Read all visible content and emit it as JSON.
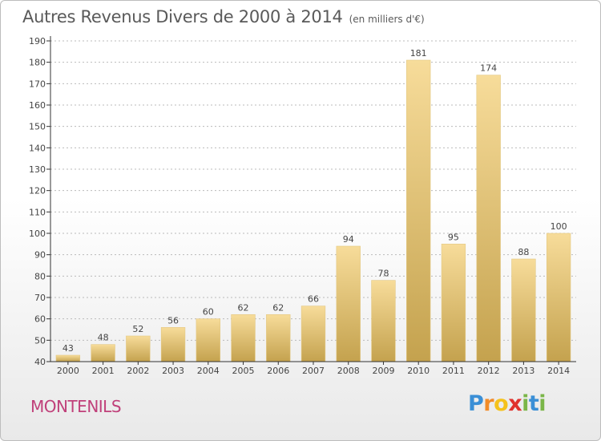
{
  "title": {
    "main": "Autres Revenus Divers de 2000 à 2014",
    "sub": "(en milliers d'€)"
  },
  "commune": "MONTENILS",
  "logo": {
    "letters": [
      "P",
      "r",
      "o",
      "x",
      "i",
      "t",
      "i"
    ],
    "colors": [
      "#3a8fd6",
      "#f28c28",
      "#f5c21b",
      "#e0322d",
      "#7ab648",
      "#3a8fd6",
      "#7ab648"
    ]
  },
  "colors": {
    "bar_top": "#f7dc9a",
    "bar_bottom": "#c4a24e",
    "axis": "#333333",
    "grid": "#bbbbbb",
    "text": "#444444"
  },
  "chart_data": {
    "type": "bar",
    "title": "Autres Revenus Divers de 2000 à 2014",
    "subtitle": "(en milliers d'€)",
    "categories": [
      "2000",
      "2001",
      "2002",
      "2003",
      "2004",
      "2005",
      "2006",
      "2007",
      "2008",
      "2009",
      "2010",
      "2011",
      "2012",
      "2013",
      "2014"
    ],
    "values": [
      43,
      48,
      52,
      56,
      60,
      62,
      62,
      66,
      94,
      78,
      181,
      95,
      174,
      88,
      100
    ],
    "ylim": [
      40,
      190
    ],
    "yticks": [
      40,
      50,
      60,
      70,
      80,
      90,
      100,
      110,
      120,
      130,
      140,
      150,
      160,
      170,
      180,
      190
    ],
    "xlabel": "",
    "ylabel": "",
    "grid": true
  }
}
